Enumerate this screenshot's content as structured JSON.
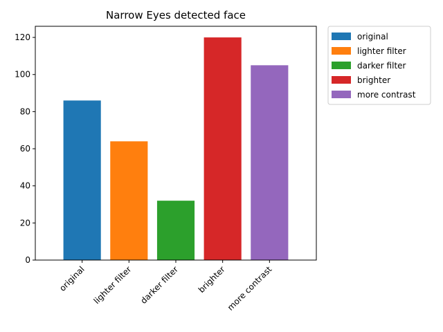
{
  "chart_data": {
    "type": "bar",
    "title": "Narrow Eyes detected face",
    "xlabel": "",
    "ylabel": "",
    "categories": [
      "original",
      "lighter filter",
      "darker filter",
      "brighter",
      "more contrast"
    ],
    "values": [
      86,
      64,
      32,
      120,
      105
    ],
    "colors": [
      "#1f77b4",
      "#ff7f0e",
      "#2ca02c",
      "#d62728",
      "#9467bd"
    ],
    "ylim": [
      0,
      126
    ],
    "yticks": [
      0,
      20,
      40,
      60,
      80,
      100,
      120
    ],
    "grid": false,
    "legend": {
      "placement": "outside-top-right",
      "entries": [
        "original",
        "lighter filter",
        "darker filter",
        "brighter",
        "more contrast"
      ]
    }
  }
}
